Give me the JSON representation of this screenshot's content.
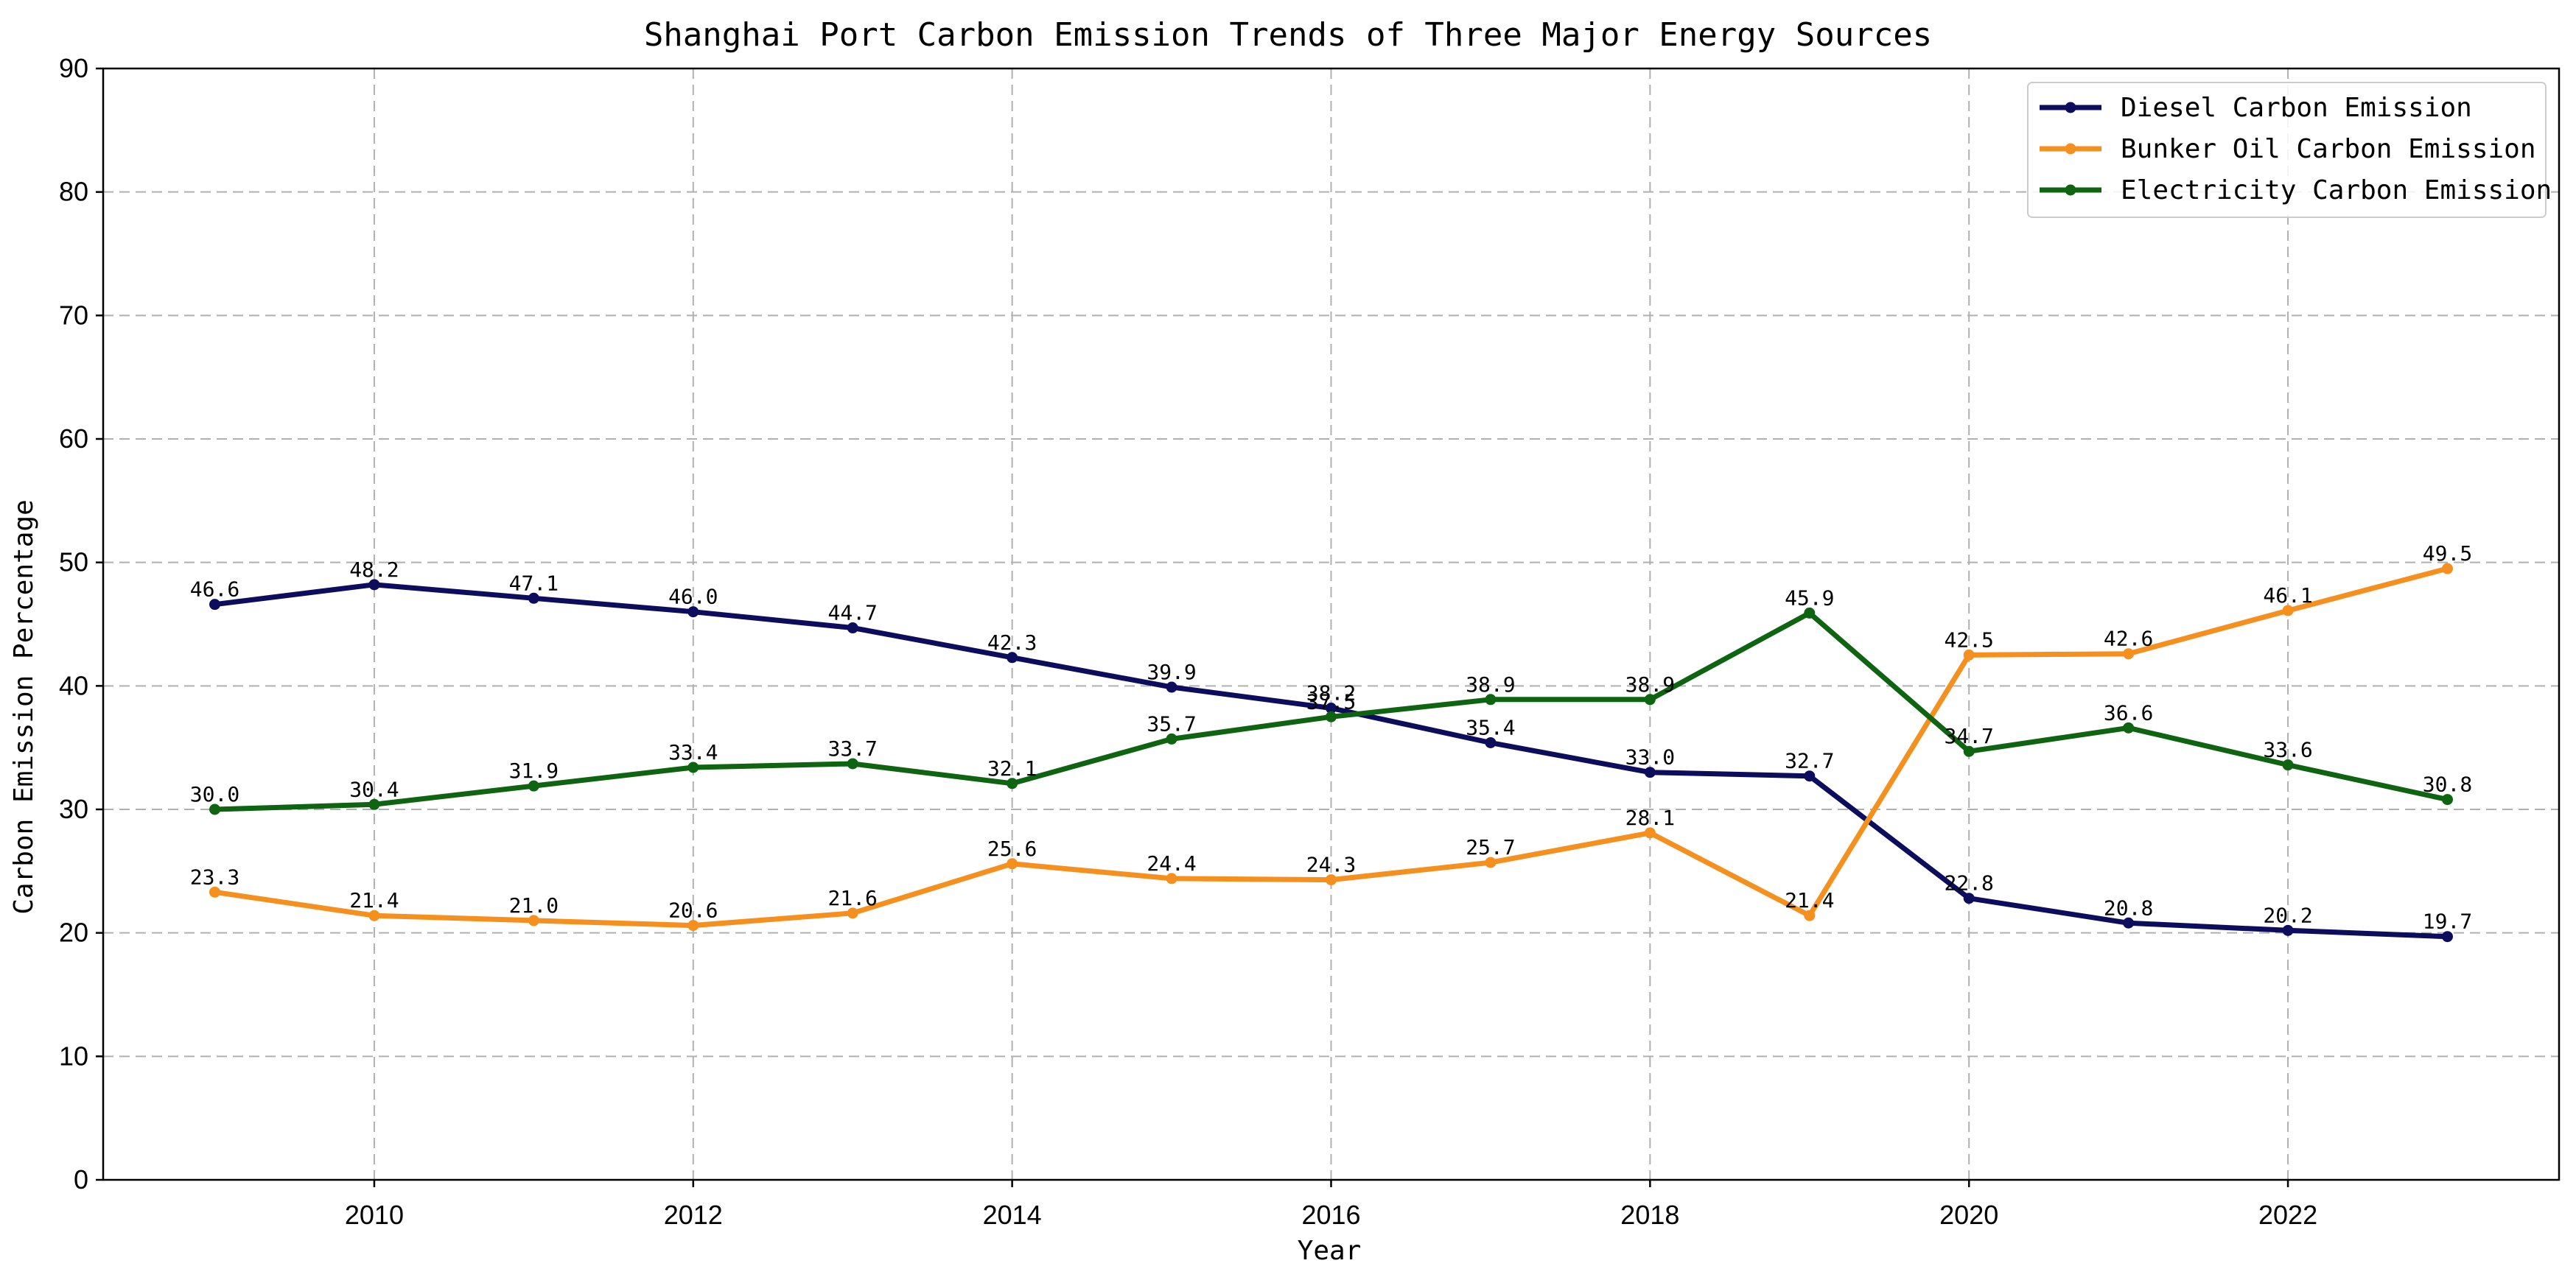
{
  "chart_data": {
    "type": "line",
    "title": "Shanghai Port Carbon Emission Trends of Three Major Energy Sources",
    "xlabel": "Year",
    "ylabel": "Carbon Emission Percentage",
    "x": [
      2009,
      2010,
      2011,
      2012,
      2013,
      2014,
      2015,
      2016,
      2017,
      2018,
      2019,
      2020,
      2021,
      2022,
      2023
    ],
    "xlim": [
      2008.3,
      2023.7
    ],
    "ylim": [
      0,
      90
    ],
    "xticks": [
      2010,
      2012,
      2014,
      2016,
      2018,
      2020,
      2022
    ],
    "yticks": [
      0,
      10,
      20,
      30,
      40,
      50,
      60,
      70,
      80,
      90
    ],
    "grid": true,
    "legend_position": "top-right",
    "series": [
      {
        "name": "Diesel Carbon Emission",
        "color": "#0d0d5e",
        "values": [
          46.6,
          48.2,
          47.1,
          46.0,
          44.7,
          42.3,
          39.9,
          38.2,
          35.4,
          33.0,
          32.7,
          22.8,
          20.8,
          20.2,
          19.7
        ],
        "labels": [
          "46.6",
          "48.2",
          "47.1",
          "46.0",
          "44.7",
          "42.3",
          "39.9",
          "38.2",
          "35.4",
          "33.0",
          "32.7",
          "22.8",
          "20.8",
          "20.2",
          "19.7"
        ]
      },
      {
        "name": "Bunker Oil Carbon Emission",
        "color": "#f5901e",
        "values": [
          23.3,
          21.4,
          21.0,
          20.6,
          21.6,
          25.6,
          24.4,
          24.3,
          25.7,
          28.1,
          21.4,
          42.5,
          42.6,
          46.1,
          49.5
        ],
        "labels": [
          "23.3",
          "21.4",
          "21.0",
          "20.6",
          "21.6",
          "25.6",
          "24.4",
          "24.3",
          "25.7",
          "28.1",
          "21.4",
          "42.5",
          "42.6",
          "46.1",
          "49.5"
        ]
      },
      {
        "name": "Electricity Carbon Emission",
        "color": "#0e6410",
        "values": [
          30.0,
          30.4,
          31.9,
          33.4,
          33.7,
          32.1,
          35.7,
          37.5,
          38.9,
          38.9,
          45.9,
          34.7,
          36.6,
          33.6,
          30.8
        ],
        "labels": [
          "30.0",
          "30.4",
          "31.9",
          "33.4",
          "33.7",
          "32.1",
          "35.7",
          "37.5",
          "38.9",
          "38.9",
          "45.9",
          "34.7",
          "36.6",
          "33.6",
          "30.8"
        ]
      }
    ]
  }
}
